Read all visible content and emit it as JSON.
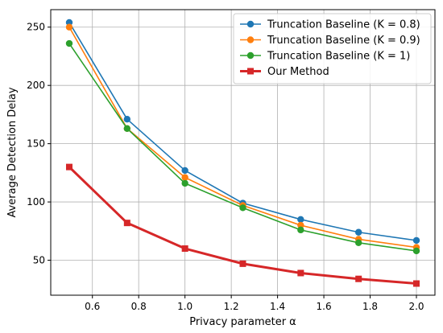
{
  "chart_data": {
    "type": "line",
    "title": "",
    "xlabel": "Privacy parameter α",
    "ylabel": "Average Detection Delay",
    "xlim": [
      0.42,
      2.08
    ],
    "ylim": [
      20,
      265
    ],
    "xticks": [
      0.6,
      0.8,
      1.0,
      1.2,
      1.4,
      1.6,
      1.8,
      2.0
    ],
    "xtick_labels": [
      "0.6",
      "0.8",
      "1.0",
      "1.2",
      "1.4",
      "1.6",
      "1.8",
      "2.0"
    ],
    "yticks": [
      50,
      100,
      150,
      200,
      250
    ],
    "ytick_labels": [
      "50",
      "100",
      "150",
      "200",
      "250"
    ],
    "grid": true,
    "legend_position": "top-right",
    "x": [
      0.5,
      0.75,
      1.0,
      1.25,
      1.5,
      1.75,
      2.0
    ],
    "series": [
      {
        "name": "Truncation Baseline (K = 0.8)",
        "color": "#1f77b4",
        "marker": "circle",
        "values": [
          254,
          171,
          127,
          99,
          85,
          74,
          67
        ]
      },
      {
        "name": "Truncation Baseline (K = 0.9)",
        "color": "#ff7f0e",
        "marker": "circle",
        "values": [
          250,
          163,
          121,
          97,
          80,
          68,
          61
        ]
      },
      {
        "name": "Truncation Baseline (K = 1)",
        "color": "#2ca02c",
        "marker": "circle",
        "values": [
          236,
          163,
          116,
          95,
          76,
          65,
          58
        ]
      },
      {
        "name": "Our Method",
        "color": "#d62728",
        "marker": "square",
        "values": [
          130,
          82,
          60,
          47,
          39,
          34,
          30
        ]
      }
    ]
  }
}
